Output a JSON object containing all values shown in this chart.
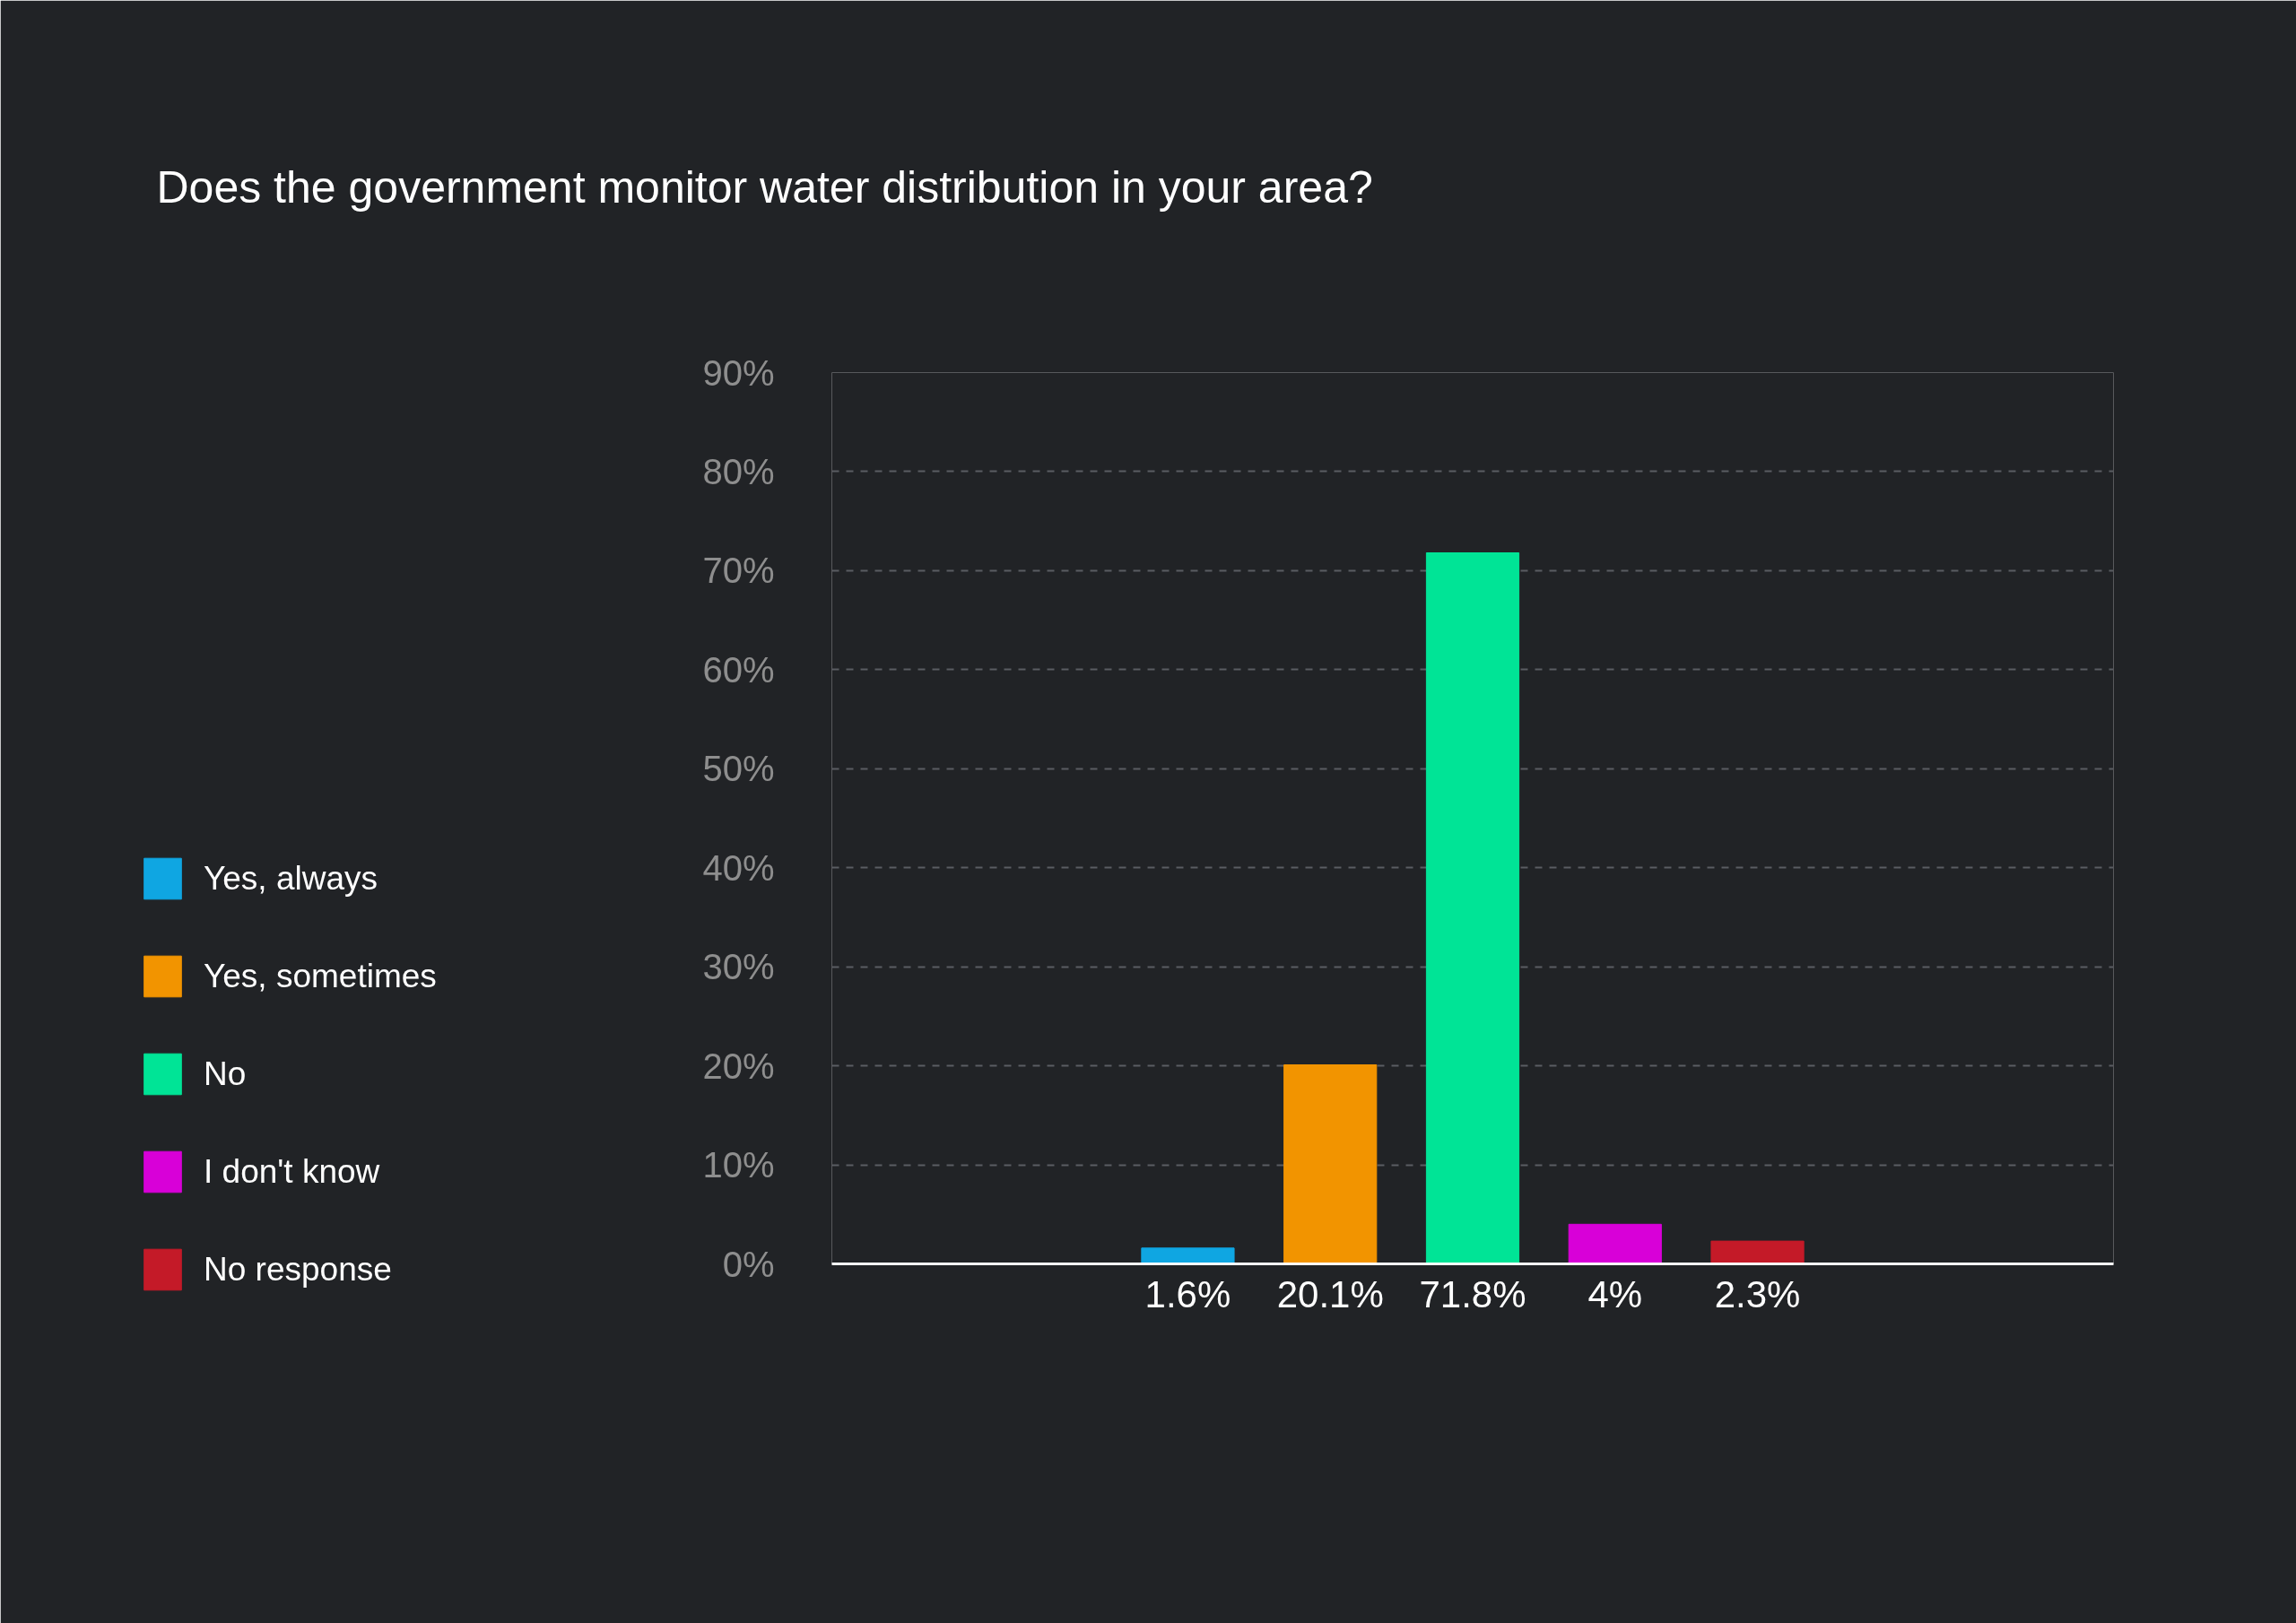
{
  "chart_data": {
    "type": "bar",
    "title": "Does the government monitor water distribution in your area?",
    "categories": [
      null,
      null,
      null,
      null,
      null,
      null,
      null,
      null,
      null
    ],
    "series": [
      {
        "name": "Yes, always",
        "color": "#0fa6e2",
        "values": [
          null,
          null,
          1.6,
          null,
          null,
          null,
          null,
          null,
          null
        ],
        "value_labels": [
          null,
          null,
          "1.6%",
          null,
          null,
          null,
          null,
          null,
          null
        ]
      },
      {
        "name": "Yes, sometimes",
        "color": "#f29400",
        "values": [
          null,
          null,
          null,
          20.1,
          null,
          null,
          null,
          null,
          null
        ],
        "value_labels": [
          null,
          null,
          null,
          "20.1%",
          null,
          null,
          null,
          null,
          null
        ]
      },
      {
        "name": "No",
        "color": "#00e496",
        "values": [
          null,
          null,
          null,
          null,
          71.8,
          null,
          null,
          null,
          null
        ],
        "value_labels": [
          null,
          null,
          null,
          null,
          "71.8%",
          null,
          null,
          null,
          null
        ]
      },
      {
        "name": "I don't know",
        "color": "#d800d8",
        "values": [
          null,
          null,
          null,
          null,
          null,
          4,
          null,
          null,
          null
        ],
        "value_labels": [
          null,
          null,
          null,
          null,
          null,
          "4%",
          null,
          null,
          null
        ]
      },
      {
        "name": "No response",
        "color": "#c41a28",
        "values": [
          null,
          null,
          null,
          null,
          null,
          null,
          2.3,
          null,
          null
        ],
        "value_labels": [
          null,
          null,
          null,
          null,
          null,
          null,
          "2.3%",
          null,
          null
        ]
      }
    ],
    "ylim": [
      0,
      90
    ],
    "yticks": [
      {
        "value": 0,
        "label": "0%"
      },
      {
        "value": 10,
        "label": "10%"
      },
      {
        "value": 20,
        "label": "20%"
      },
      {
        "value": 30,
        "label": "30%"
      },
      {
        "value": 40,
        "label": "40%"
      },
      {
        "value": 50,
        "label": "50%"
      },
      {
        "value": 60,
        "label": "60%"
      },
      {
        "value": 70,
        "label": "70%"
      },
      {
        "value": 80,
        "label": "80%"
      },
      {
        "value": 90,
        "label": "90%"
      }
    ],
    "grid": "y",
    "legend": "left"
  }
}
